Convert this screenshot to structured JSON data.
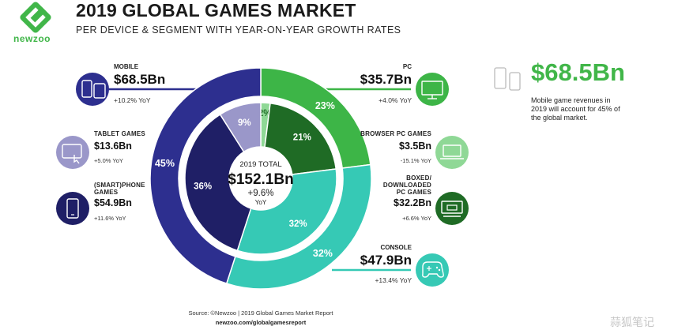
{
  "header": {
    "brand": "newzoo",
    "title": "2019 GLOBAL GAMES MARKET",
    "subtitle": "PER DEVICE & SEGMENT WITH YEAR-ON-YEAR GROWTH RATES"
  },
  "center": {
    "year_total": "2019 TOTAL",
    "total": "$152.1Bn",
    "growth": "+9.6%",
    "growth_unit": "YoY"
  },
  "segments": {
    "mobile": {
      "label": "MOBILE",
      "value": "$68.5Bn",
      "yoy": "+10.2% YoY"
    },
    "tablet": {
      "label": "TABLET GAMES",
      "value": "$13.6Bn",
      "yoy": "+5.0% YoY"
    },
    "smartphone": {
      "label_1": "(SMART)PHONE",
      "label_2": "GAMES",
      "value": "$54.9Bn",
      "yoy": "+11.6% YoY"
    },
    "pc": {
      "label": "PC",
      "value": "$35.7Bn",
      "yoy": "+4.0% YoY"
    },
    "browser": {
      "label": "BROWSER PC GAMES",
      "value": "$3.5Bn",
      "yoy": "-15.1% YoY"
    },
    "boxed": {
      "label_1": "BOXED/",
      "label_2": "DOWNLOADED",
      "label_3": "PC GAMES",
      "value": "$32.2Bn",
      "yoy": "+6.6% YoY"
    },
    "console": {
      "label": "CONSOLE",
      "value": "$47.9Bn",
      "yoy": "+13.4% YoY"
    }
  },
  "callout": {
    "value": "$68.5Bn",
    "text": "Mobile game revenues in 2019 will account for 45% of the global market."
  },
  "footer": {
    "source": "Source: ©Newzoo | 2019 Global Games Market Report",
    "url": "newzoo.com/globalgamesreport"
  },
  "watermark": "蒜狐笔记",
  "colors": {
    "mobile": "#2d2f8f",
    "smartphone": "#1f1f66",
    "tablet": "#9a97c9",
    "pc": "#3db547",
    "browser": "#8fd896",
    "boxed": "#1f6b25",
    "console": "#36c9b5",
    "brand_green": "#41b649"
  },
  "chart_data": {
    "type": "pie",
    "title": "2019 GLOBAL GAMES MARKET",
    "outer_ring": {
      "categories": [
        "PC",
        "CONSOLE",
        "MOBILE"
      ],
      "values": [
        23,
        32,
        45
      ],
      "value_labels": [
        "23%",
        "32%",
        "45%"
      ],
      "revenue_bn": [
        35.7,
        47.9,
        68.5
      ]
    },
    "inner_ring": {
      "categories": [
        "BROWSER PC GAMES",
        "BOXED/DOWNLOADED PC GAMES",
        "CONSOLE",
        "(SMART)PHONE GAMES",
        "TABLET GAMES"
      ],
      "values": [
        2,
        21,
        32,
        36,
        9
      ],
      "value_labels": [
        "2%",
        "21%",
        "32%",
        "36%",
        "9%"
      ],
      "revenue_bn": [
        3.5,
        32.2,
        47.9,
        54.9,
        13.6
      ]
    }
  }
}
